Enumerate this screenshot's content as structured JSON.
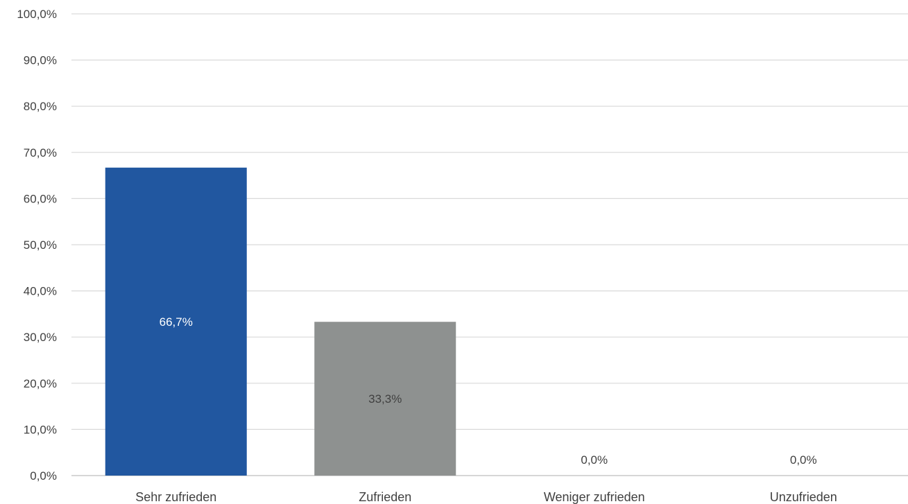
{
  "chart_data": {
    "type": "bar",
    "title": "",
    "xlabel": "",
    "ylabel": "",
    "categories": [
      "Sehr zufrieden",
      "Zufrieden",
      "Weniger zufrieden",
      "Unzufrieden"
    ],
    "values": [
      66.7,
      33.3,
      0.0,
      0.0
    ],
    "data_labels": [
      "66,7%",
      "33,3%",
      "0,0%",
      "0,0%"
    ],
    "bar_colors": [
      "#2157a0",
      "#8e9190",
      "#8e9190",
      "#8e9190"
    ],
    "data_label_colors": [
      "#ffffff",
      "#404040",
      "#404040",
      "#404040"
    ],
    "ylim": [
      0,
      100
    ],
    "yticks": [
      0,
      10,
      20,
      30,
      40,
      50,
      60,
      70,
      80,
      90,
      100
    ],
    "ytick_labels": [
      "0,0%",
      "10,0%",
      "20,0%",
      "30,0%",
      "40,0%",
      "50,0%",
      "60,0%",
      "70,0%",
      "80,0%",
      "90,0%",
      "100,0%"
    ],
    "grid": true,
    "legend": "none"
  }
}
